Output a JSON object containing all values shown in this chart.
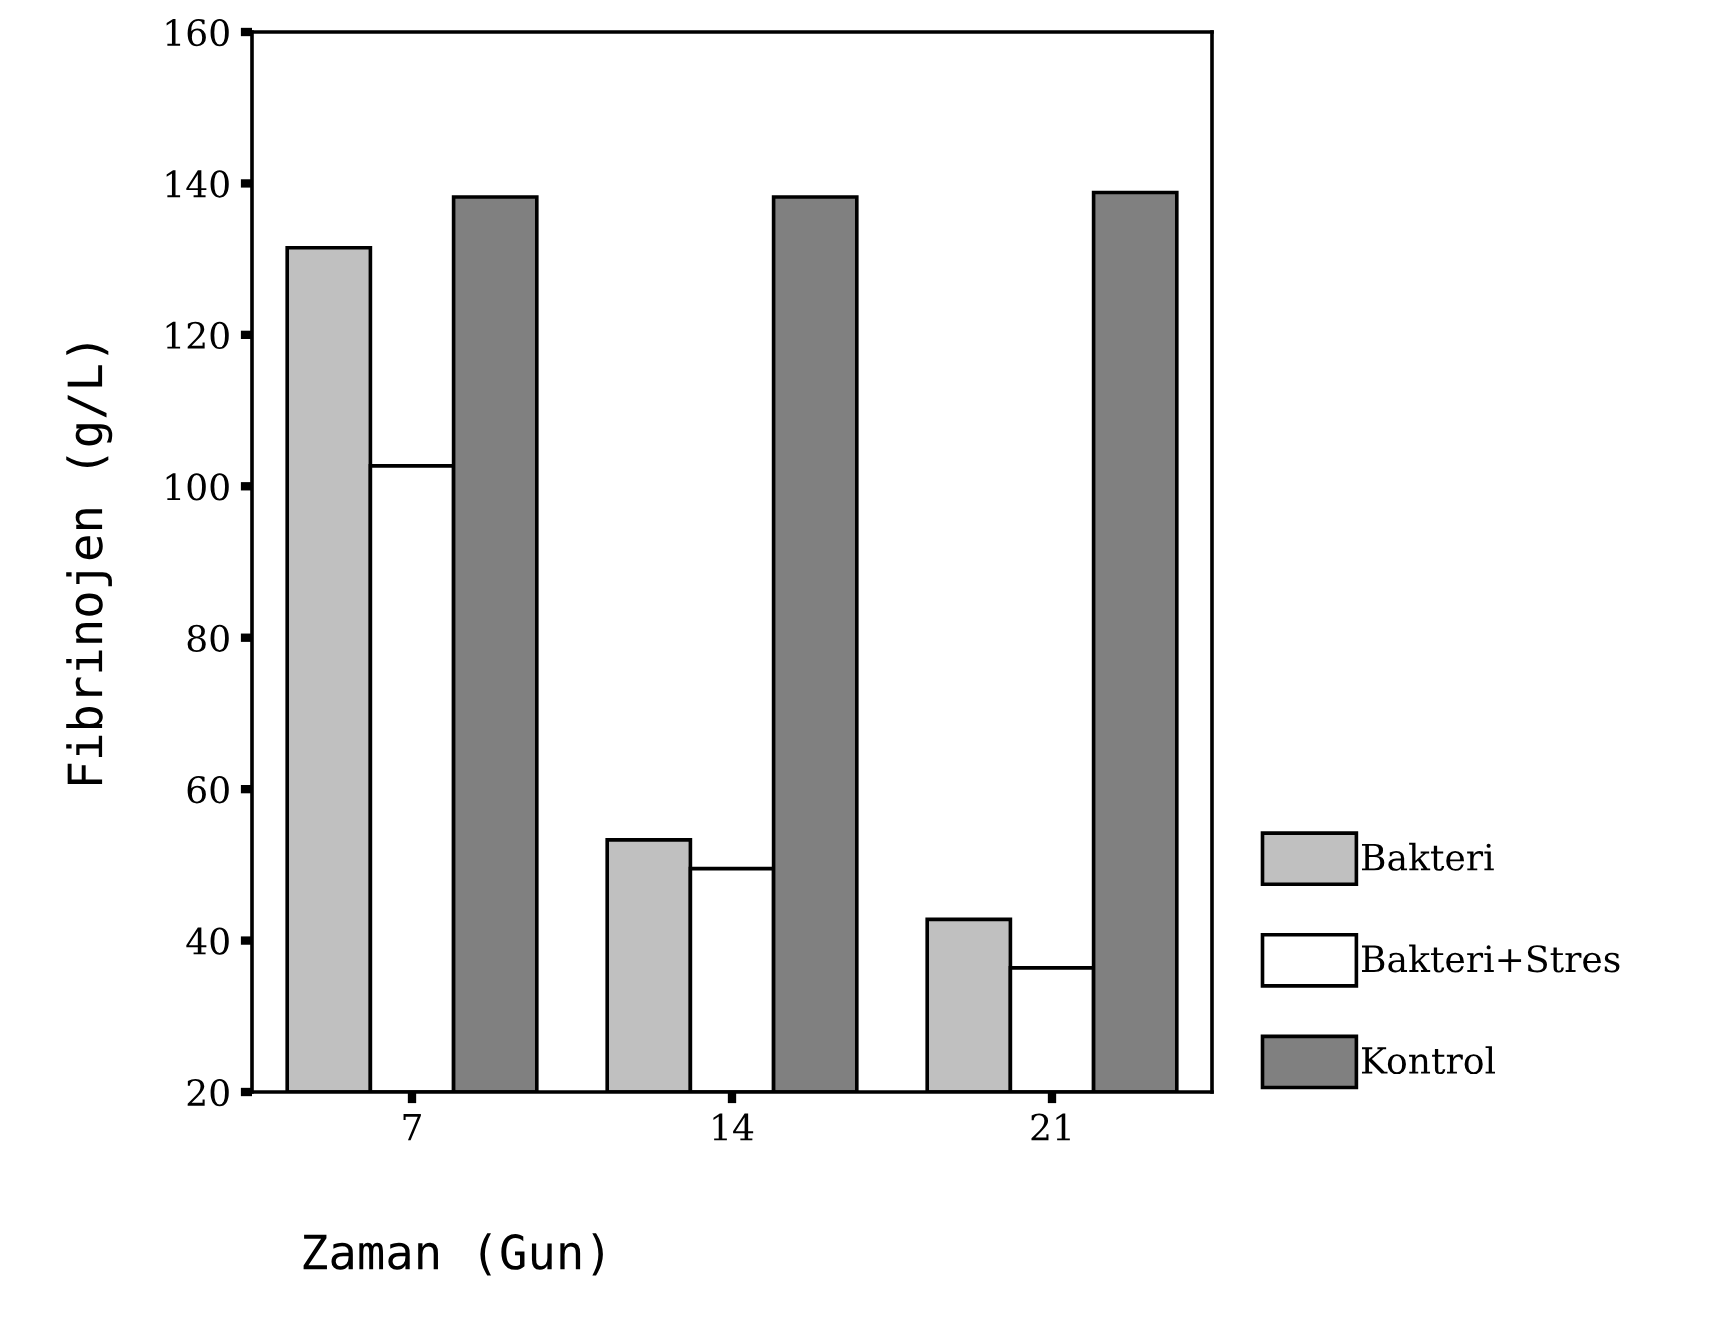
{
  "chart_data": {
    "type": "bar",
    "xlabel": "Zaman (Gun)",
    "ylabel": "Fibrinojen (g/L)",
    "categories": [
      "7",
      "14",
      "21"
    ],
    "series": [
      {
        "name": "Bakteri",
        "color": "#c0c0c0",
        "values": [
          131.5,
          53.3,
          42.8
        ]
      },
      {
        "name": "Bakteri+Stres",
        "color": "#ffffff",
        "values": [
          102.7,
          49.5,
          36.4
        ]
      },
      {
        "name": "Kontrol",
        "color": "#808080",
        "values": [
          138.2,
          138.2,
          138.8
        ]
      }
    ],
    "ylim": [
      20,
      160
    ],
    "yticks": [
      20,
      40,
      60,
      80,
      100,
      120,
      140,
      160
    ],
    "grid": false,
    "legend": "right"
  }
}
